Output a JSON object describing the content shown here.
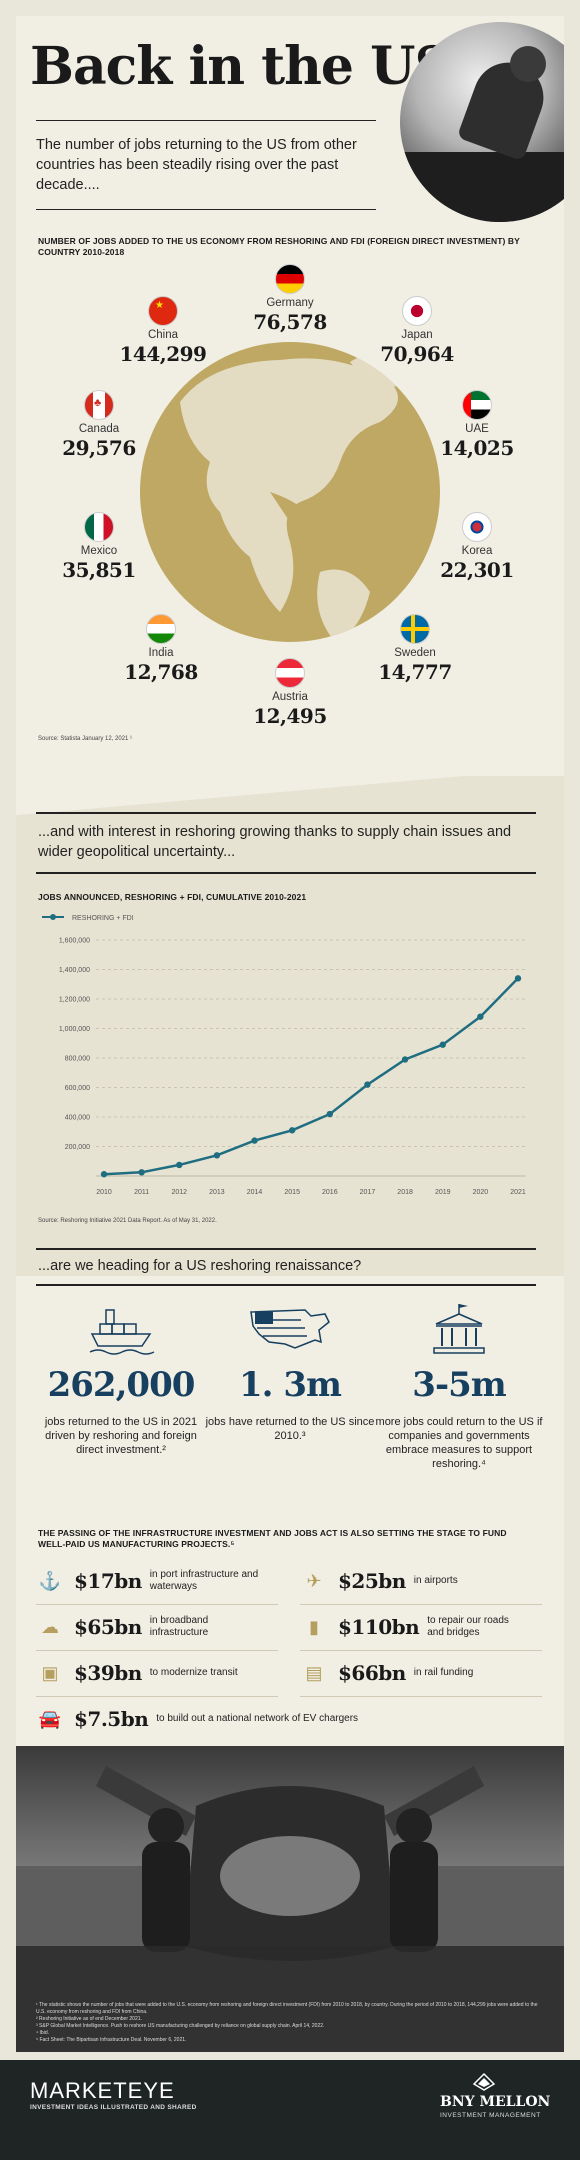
{
  "header": {
    "title": "Back in the USA",
    "intro": "The number of jobs returning to the US from other countries has been steadily rising over the past decade...."
  },
  "map_section": {
    "heading": "NUMBER OF JOBS ADDED TO THE US ECONOMY FROM RESHORING AND FDI (FOREIGN DIRECT INVESTMENT) BY COUNTRY 2010-2018",
    "countries": [
      {
        "name": "Germany",
        "value": "76,578"
      },
      {
        "name": "China",
        "value": "144,299"
      },
      {
        "name": "Japan",
        "value": "70,964"
      },
      {
        "name": "Canada",
        "value": "29,576"
      },
      {
        "name": "UAE",
        "value": "14,025"
      },
      {
        "name": "Mexico",
        "value": "35,851"
      },
      {
        "name": "Korea",
        "value": "22,301"
      },
      {
        "name": "India",
        "value": "12,768"
      },
      {
        "name": "Sweden",
        "value": "14,777"
      },
      {
        "name": "Austria",
        "value": "12,495"
      }
    ],
    "source": "Source: Statista January 12, 2021 ¹"
  },
  "chart_section": {
    "heading": "...and with interest in reshoring growing thanks to supply chain issues and wider geopolitical uncertainty...",
    "chart_title": "JOBS ANNOUNCED, RESHORING + FDI, CUMULATIVE 2010-2021",
    "legend": "RESHORING + FDI",
    "source": "Source: Reshoring Initiative 2021 Data Report. As of May 31, 2022.",
    "line_color": "#1f6d80"
  },
  "chart_data": {
    "type": "line",
    "title": "JOBS ANNOUNCED, RESHORING + FDI, CUMULATIVE 2010-2021",
    "x": [
      "2010",
      "2011",
      "2012",
      "2013",
      "2014",
      "2015",
      "2016",
      "2017",
      "2018",
      "2019",
      "2020",
      "2021"
    ],
    "series": [
      {
        "name": "RESHORING + FDI",
        "values": [
          12000,
          25000,
          75000,
          140000,
          240000,
          310000,
          420000,
          620000,
          790000,
          890000,
          1080000,
          1340000
        ]
      }
    ],
    "y_ticks": [
      "200,000",
      "400,000",
      "600,000",
      "800,000",
      "1,000,000",
      "1,200,000",
      "1,400,000",
      "1,600,000"
    ],
    "ylim": [
      0,
      1600000
    ],
    "grid": true,
    "legend_position": "top-left"
  },
  "stats_section": {
    "heading": "...are we heading for a US reshoring renaissance?",
    "stats": [
      {
        "value": "262,000",
        "desc": "jobs returned to the US in 2021 driven by reshoring and foreign direct investment.²",
        "icon": "cargo-ship-icon"
      },
      {
        "value": "1. 3m",
        "desc": "jobs have returned to the US since 2010.³",
        "icon": "us-map-icon"
      },
      {
        "value": "3-5m",
        "desc": "more jobs could return to the US if companies and governments embrace measures to support reshoring.⁴",
        "icon": "capitol-building-icon"
      }
    ]
  },
  "infra_section": {
    "heading": "THE PASSING OF THE INFRASTRUCTURE INVESTMENT AND JOBS ACT IS ALSO SETTING THE STAGE TO FUND WELL-PAID US MANUFACTURING PROJECTS.⁵",
    "items": [
      {
        "amount": "$17bn",
        "text": "in port infrastructure and waterways",
        "icon": "anchor-icon"
      },
      {
        "amount": "$25bn",
        "text": "in airports",
        "icon": "airport-icon"
      },
      {
        "amount": "$65bn",
        "text": "in broadband infrastructure",
        "icon": "broadband-icon"
      },
      {
        "amount": "$110bn",
        "text": "to repair our roads and bridges",
        "icon": "road-icon"
      },
      {
        "amount": "$39bn",
        "text": "to modernize transit",
        "icon": "bus-icon"
      },
      {
        "amount": "$66bn",
        "text": "in rail funding",
        "icon": "train-icon"
      },
      {
        "amount": "$7.5bn",
        "text": "to build out a national network of EV chargers",
        "icon": "ev-car-icon"
      }
    ]
  },
  "footnotes": [
    "¹ The statistic shows the number of jobs that were added to the U.S. economy from reshoring and foreign direct investment (FDI) from 2010 to 2018, by country. During the period of 2010 to 2018, 144,299 jobs were added to the U.S. economy from reshoring and FDI from China.",
    "² Reshoring Initiative as of end December 2021.",
    "³ S&P Global Market Intelligence. Push to reshore US manufacturing challenged by reliance on global supply chain. April 14, 2022.",
    "⁴ Ibid.",
    "⁵ Fact Sheet: The Bipartisan Infrastructure Deal. November 6, 2021."
  ],
  "footer": {
    "brand": "MARKETEYE",
    "brand_tagline": "INVESTMENT IDEAS ILLUSTRATED AND SHARED",
    "partner": "BNY MELLON",
    "partner_sub": "INVESTMENT MANAGEMENT"
  }
}
